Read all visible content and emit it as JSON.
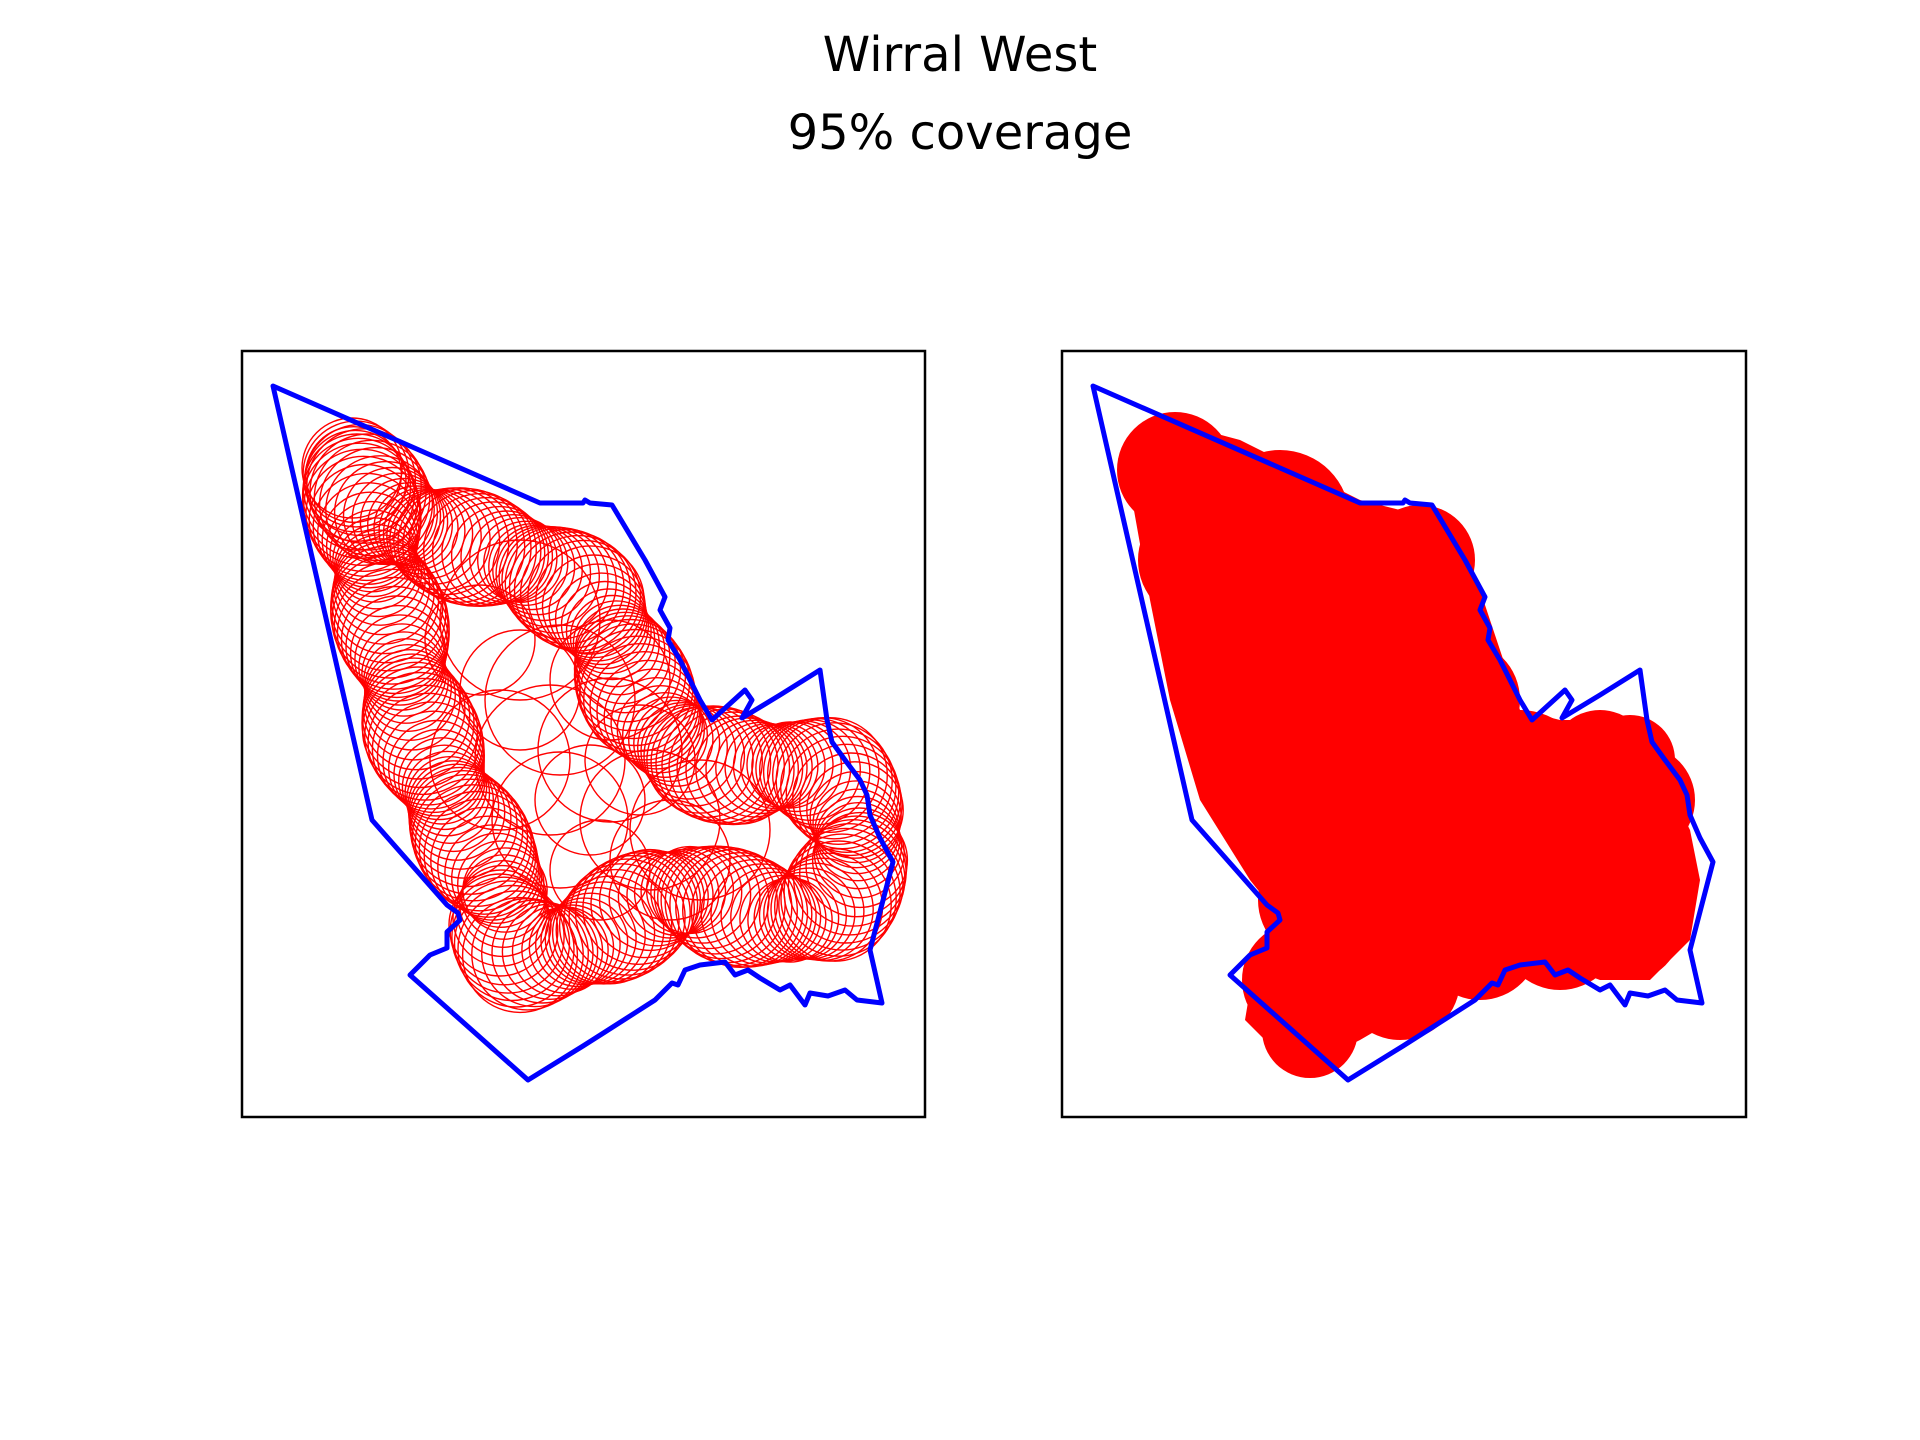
{
  "figure": {
    "title": "Wirral West",
    "subtitle": "95% coverage"
  },
  "colors": {
    "boundary": "#0000ff",
    "coverage": "#ff0000",
    "frame": "#000000",
    "background": "#ffffff"
  },
  "panels": [
    {
      "id": "circles",
      "style": "outline-circles"
    },
    {
      "id": "union",
      "style": "filled-union"
    }
  ]
}
